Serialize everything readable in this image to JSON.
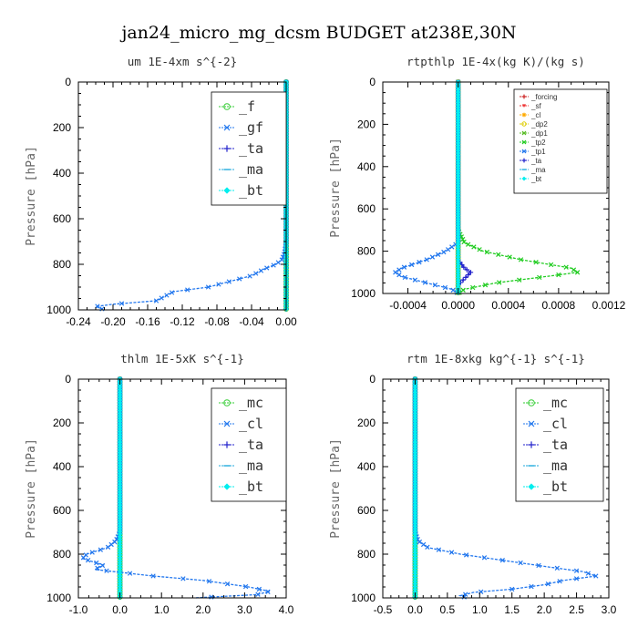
{
  "figure": {
    "title": "jan24_micro_mg_dcsm  BUDGET at238E,30N"
  },
  "chart_data": [
    {
      "type": "line",
      "title": "um  1E-4xm s^{-2}",
      "ylabel": "Pressure [hPa]",
      "xlim": [
        -0.24,
        0.0
      ],
      "ylim": [
        1000,
        0
      ],
      "xticks": [
        "-0.24",
        "-0.20",
        "-0.16",
        "-0.12",
        "-0.08",
        "-0.04",
        "0.00"
      ],
      "yticks": [
        "0",
        "200",
        "400",
        "600",
        "800",
        "1000"
      ],
      "grid": false,
      "legend_position": "top-right",
      "series": [
        {
          "name": "_f",
          "color": "#33cc33",
          "marker": "o",
          "values_p": [
            0,
            1000
          ],
          "values_x": [
            0,
            0
          ]
        },
        {
          "name": "_gf",
          "color": "#2277ee",
          "marker": "x",
          "values_p": [
            0,
            700,
            750,
            780,
            800,
            820,
            850,
            870,
            900,
            920,
            940,
            950,
            960,
            975,
            985,
            1000
          ],
          "values_x": [
            0,
            0,
            -0.002,
            -0.005,
            -0.012,
            -0.025,
            -0.04,
            -0.06,
            -0.09,
            -0.13,
            -0.14,
            -0.145,
            -0.15,
            -0.2,
            -0.22,
            -0.21
          ]
        },
        {
          "name": "_ta",
          "color": "#2222cc",
          "marker": "+",
          "values_p": [
            0,
            1000
          ],
          "values_x": [
            0,
            0
          ]
        },
        {
          "name": "_ma",
          "color": "#22aadd",
          "marker": "-",
          "values_p": [
            0,
            1000
          ],
          "values_x": [
            0,
            0
          ]
        },
        {
          "name": "_bt",
          "color": "#00eeee",
          "marker": "D",
          "values_p": [
            0,
            1000
          ],
          "values_x": [
            0,
            0
          ]
        }
      ]
    },
    {
      "type": "line",
      "title": "rtpthlp  1E-4x(kg K)/(kg s)",
      "ylabel": "Pressure [hPa]",
      "xlim": [
        -0.0006,
        0.0012
      ],
      "ylim": [
        1000,
        0
      ],
      "xticks": [
        "-0.0004",
        "0.0000",
        "0.0004",
        "0.0008",
        "0.0012"
      ],
      "xtick_values": [
        -0.0004,
        0.0,
        0.0004,
        0.0008,
        0.0012
      ],
      "yticks": [
        "0",
        "200",
        "400",
        "600",
        "800",
        "1000"
      ],
      "grid": false,
      "legend_position": "top-right",
      "series": [
        {
          "name": "_forcing",
          "color": "#cc2222",
          "marker": "+",
          "values_p": [
            0,
            1000
          ],
          "values_x": [
            0,
            0
          ]
        },
        {
          "name": "_sf",
          "color": "#ee3333",
          "marker": "v",
          "values_p": [
            0,
            1000
          ],
          "values_x": [
            0,
            0
          ]
        },
        {
          "name": "_cl",
          "color": "#ffaa00",
          "marker": "*",
          "values_p": [
            0,
            1000
          ],
          "values_x": [
            0,
            0
          ]
        },
        {
          "name": "_dp2",
          "color": "#ddcc00",
          "marker": "o",
          "values_p": [
            0,
            1000
          ],
          "values_x": [
            0,
            0
          ]
        },
        {
          "name": "_dp1",
          "color": "#55bb22",
          "marker": "x",
          "values_p": [
            0,
            1000
          ],
          "values_x": [
            0,
            0
          ]
        },
        {
          "name": "_tp2",
          "color": "#22cc22",
          "marker": "x",
          "values_p": [
            0,
            700,
            760,
            800,
            840,
            880,
            900,
            920,
            950,
            980,
            1000
          ],
          "values_x": [
            0,
            0,
            5e-05,
            0.0002,
            0.0005,
            0.0009,
            0.00095,
            0.0007,
            0.0003,
            5e-05,
            0
          ]
        },
        {
          "name": "_tp1",
          "color": "#2277ee",
          "marker": "x",
          "values_p": [
            0,
            760,
            800,
            840,
            880,
            900,
            920,
            950,
            980,
            1000
          ],
          "values_x": [
            0,
            0,
            -0.0001,
            -0.00025,
            -0.00045,
            -0.0005,
            -0.00045,
            -0.00025,
            -5e-05,
            0
          ]
        },
        {
          "name": "_ta",
          "color": "#2222cc",
          "marker": "+",
          "values_p": [
            0,
            840,
            880,
            900,
            930,
            960,
            1000
          ],
          "values_x": [
            0,
            0,
            5e-05,
            0.0001,
            5e-05,
            0,
            0
          ]
        },
        {
          "name": "_ma",
          "color": "#22aadd",
          "marker": "-",
          "values_p": [
            0,
            1000
          ],
          "values_x": [
            0,
            0
          ]
        },
        {
          "name": "_bt",
          "color": "#00eeee",
          "marker": "D",
          "values_p": [
            0,
            1000
          ],
          "values_x": [
            0,
            0
          ]
        }
      ]
    },
    {
      "type": "line",
      "title": "thlm  1E-5xK s^{-1}",
      "ylabel": "Pressure [hPa]",
      "xlim": [
        -1.0,
        4.0
      ],
      "ylim": [
        1000,
        0
      ],
      "xticks": [
        "-1.0",
        "0.0",
        "1.0",
        "2.0",
        "3.0",
        "4.0"
      ],
      "yticks": [
        "0",
        "200",
        "400",
        "600",
        "800",
        "1000"
      ],
      "grid": false,
      "legend_position": "top-right",
      "series": [
        {
          "name": "_mc",
          "color": "#33cc33",
          "marker": "o",
          "values_p": [
            0,
            1000
          ],
          "values_x": [
            0,
            0
          ]
        },
        {
          "name": "_cl",
          "color": "#2277ee",
          "marker": "x",
          "values_p": [
            0,
            700,
            740,
            770,
            800,
            820,
            850,
            870,
            900,
            920,
            950,
            970,
            985,
            1000
          ],
          "values_x": [
            0,
            0,
            -0.1,
            -0.3,
            -0.8,
            -0.9,
            -0.4,
            -0.6,
            0.8,
            2.0,
            3.1,
            3.6,
            3.3,
            1.8
          ]
        },
        {
          "name": "_ta",
          "color": "#2222cc",
          "marker": "+",
          "values_p": [
            0,
            1000
          ],
          "values_x": [
            0,
            0
          ]
        },
        {
          "name": "_ma",
          "color": "#22aadd",
          "marker": "-",
          "values_p": [
            0,
            1000
          ],
          "values_x": [
            0,
            0
          ]
        },
        {
          "name": "_bt",
          "color": "#00eeee",
          "marker": "D",
          "values_p": [
            0,
            1000
          ],
          "values_x": [
            0,
            0
          ]
        }
      ]
    },
    {
      "type": "line",
      "title": "rtm  1E-8xkg kg^{-1} s^{-1}",
      "ylabel": "Pressure [hPa]",
      "xlim": [
        -0.5,
        3.0
      ],
      "ylim": [
        1000,
        0
      ],
      "xticks": [
        "-0.5",
        "0.0",
        "0.5",
        "1.0",
        "1.5",
        "2.0",
        "2.5",
        "3.0"
      ],
      "yticks": [
        "0",
        "200",
        "400",
        "600",
        "800",
        "1000"
      ],
      "grid": false,
      "legend_position": "top-right",
      "series": [
        {
          "name": "_mc",
          "color": "#33cc33",
          "marker": "o",
          "values_p": [
            0,
            1000
          ],
          "values_x": [
            0,
            0
          ]
        },
        {
          "name": "_cl",
          "color": "#2277ee",
          "marker": "x",
          "values_p": [
            0,
            700,
            740,
            770,
            800,
            830,
            860,
            880,
            900,
            920,
            940,
            960,
            975,
            990,
            1000
          ],
          "values_x": [
            0,
            0,
            0.05,
            0.2,
            0.7,
            1.4,
            2.1,
            2.6,
            2.8,
            2.3,
            2.0,
            1.5,
            0.9,
            0.7,
            0.8
          ]
        },
        {
          "name": "_ta",
          "color": "#2222cc",
          "marker": "+",
          "values_p": [
            0,
            1000
          ],
          "values_x": [
            0,
            0
          ]
        },
        {
          "name": "_ma",
          "color": "#22aadd",
          "marker": "-",
          "values_p": [
            0,
            1000
          ],
          "values_x": [
            0,
            0
          ]
        },
        {
          "name": "_bt",
          "color": "#00eeee",
          "marker": "D",
          "values_p": [
            0,
            1000
          ],
          "values_x": [
            0,
            0
          ]
        }
      ]
    }
  ]
}
